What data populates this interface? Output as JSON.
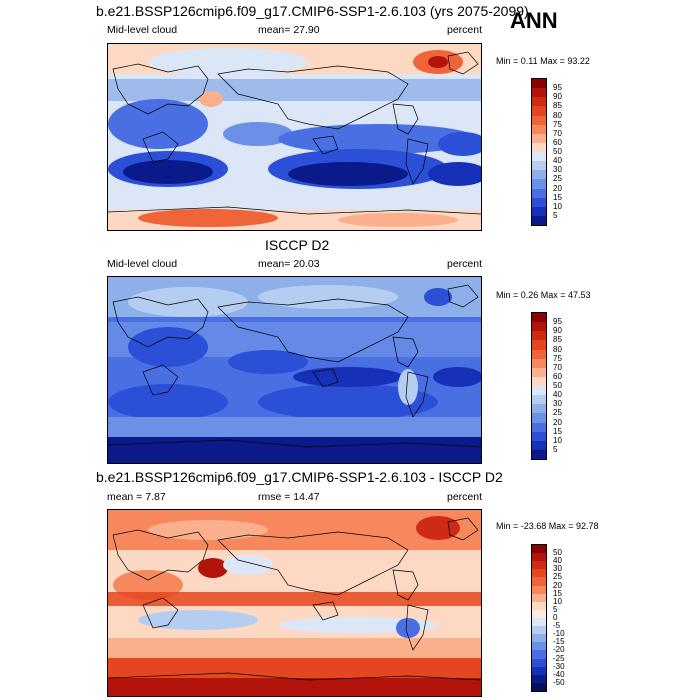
{
  "ann_label": "ANN",
  "panels": [
    {
      "title": "b.e21.BSSP126cmip6.f09_g17.CMIP6-SSP1-2.6.103 (yrs 2075-2099)",
      "left_label": "Mid-level cloud",
      "center_label": "mean=  27.90",
      "right_label": "percent",
      "minmax": "Min =   0.11 Max =  93.22",
      "levels": [
        "95",
        "90",
        "85",
        "80",
        "75",
        "70",
        "60",
        "50",
        "40",
        "30",
        "25",
        "20",
        "15",
        "10",
        "5"
      ],
      "colors": [
        "#8b0000",
        "#b2140c",
        "#cf2a14",
        "#e4461f",
        "#f0643a",
        "#f7875c",
        "#fbb08d",
        "#fdd9c4",
        "#dbe7f6",
        "#b5cdf0",
        "#8eb0ea",
        "#6b90e6",
        "#4a6fe3",
        "#2b4fd6",
        "#1630b8",
        "#0a1a8a"
      ]
    },
    {
      "title": "ISCCP D2",
      "left_label": "Mid-level cloud",
      "center_label": "mean=  20.03",
      "right_label": "percent",
      "minmax": "Min =   0.26 Max =  47.53",
      "levels": [
        "95",
        "90",
        "85",
        "80",
        "75",
        "70",
        "60",
        "50",
        "40",
        "30",
        "25",
        "20",
        "15",
        "10",
        "5"
      ],
      "colors": [
        "#8b0000",
        "#b2140c",
        "#cf2a14",
        "#e4461f",
        "#f0643a",
        "#f7875c",
        "#fbb08d",
        "#fdd9c4",
        "#dbe7f6",
        "#b5cdf0",
        "#8eb0ea",
        "#6b90e6",
        "#4a6fe3",
        "#2b4fd6",
        "#1630b8",
        "#0a1a8a"
      ]
    },
    {
      "title": "b.e21.BSSP126cmip6.f09_g17.CMIP6-SSP1-2.6.103 - ISCCP D2",
      "left_label": "mean =   7.87",
      "center_label": "rmse =  14.47",
      "right_label": "percent",
      "minmax": "Min = -23.68 Max =  92.78",
      "levels": [
        "50",
        "40",
        "30",
        "25",
        "20",
        "15",
        "10",
        "5",
        "0",
        "-5",
        "-10",
        "-15",
        "-20",
        "-25",
        "-30",
        "-40",
        "-50"
      ],
      "colors": [
        "#8b0000",
        "#b2140c",
        "#cf2a14",
        "#e4461f",
        "#f0643a",
        "#f7875c",
        "#fbb08d",
        "#fdd9c4",
        "#fdebe0",
        "#dbe7f6",
        "#b5cdf0",
        "#8eb0ea",
        "#6b90e6",
        "#4a6fe3",
        "#2b4fd6",
        "#1630b8",
        "#0a1a8a",
        "#06105e"
      ]
    }
  ]
}
